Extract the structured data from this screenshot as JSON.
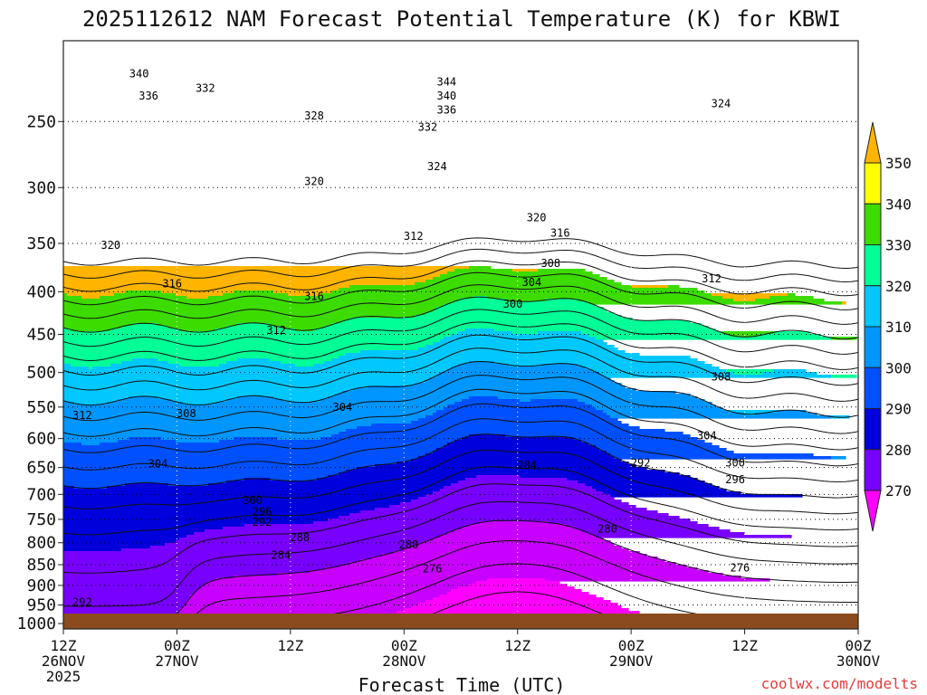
{
  "chart_data": {
    "type": "contour",
    "title": "2025112612 NAM Forecast Potential Temperature (K) for KBWI",
    "xlabel": "Forecast Time (UTC)",
    "ylabel": "",
    "credit": "coolwx.com/modelts",
    "x_ticks": [
      {
        "hour": 0,
        "line1": "12Z",
        "line2": "26NOV",
        "line3": "2025"
      },
      {
        "hour": 12,
        "line1": "00Z",
        "line2": "27NOV",
        "line3": ""
      },
      {
        "hour": 24,
        "line1": "12Z",
        "line2": "",
        "line3": ""
      },
      {
        "hour": 36,
        "line1": "00Z",
        "line2": "28NOV",
        "line3": ""
      },
      {
        "hour": 48,
        "line1": "12Z",
        "line2": "",
        "line3": ""
      },
      {
        "hour": 60,
        "line1": "00Z",
        "line2": "29NOV",
        "line3": ""
      },
      {
        "hour": 72,
        "line1": "12Z",
        "line2": "",
        "line3": ""
      },
      {
        "hour": 84,
        "line1": "00Z",
        "line2": "30NOV",
        "line3": ""
      }
    ],
    "x_range_hours": [
      0,
      84
    ],
    "y_ticks": [
      250,
      300,
      350,
      400,
      450,
      500,
      550,
      600,
      650,
      700,
      750,
      800,
      850,
      900,
      950,
      1000
    ],
    "y_range_hpa": [
      200,
      1015
    ],
    "y_scale": "log-pressure",
    "colorbar": {
      "levels": [
        270,
        280,
        290,
        300,
        310,
        320,
        330,
        340,
        350
      ],
      "labels": [
        "270",
        "280",
        "290",
        "300",
        "310",
        "320",
        "330",
        "340",
        "350"
      ],
      "colors": [
        "#ff00ff",
        "#c800ff",
        "#7800ff",
        "#0000dc",
        "#0050ff",
        "#0096ff",
        "#00c8ff",
        "#00ff96",
        "#3cdc00",
        "#ffff00",
        "#ffb400"
      ]
    },
    "contour_labels": [
      {
        "text": "344",
        "hour": 40.5,
        "p": 224
      },
      {
        "text": "340",
        "hour": 40.5,
        "p": 233
      },
      {
        "text": "336",
        "hour": 40.5,
        "p": 242
      },
      {
        "text": "332",
        "hour": 38.5,
        "p": 254
      },
      {
        "text": "328",
        "hour": 26.5,
        "p": 246
      },
      {
        "text": "340",
        "hour": 8.0,
        "p": 219
      },
      {
        "text": "336",
        "hour": 9.0,
        "p": 233
      },
      {
        "text": "332",
        "hour": 15.0,
        "p": 228
      },
      {
        "text": "324",
        "hour": 69.5,
        "p": 238
      },
      {
        "text": "324",
        "hour": 39.5,
        "p": 283
      },
      {
        "text": "320",
        "hour": 26.5,
        "p": 295
      },
      {
        "text": "320",
        "hour": 50.0,
        "p": 326
      },
      {
        "text": "316",
        "hour": 52.5,
        "p": 340
      },
      {
        "text": "320",
        "hour": 5.0,
        "p": 352
      },
      {
        "text": "312",
        "hour": 37.0,
        "p": 343
      },
      {
        "text": "308",
        "hour": 51.5,
        "p": 370
      },
      {
        "text": "304",
        "hour": 49.5,
        "p": 390
      },
      {
        "text": "300",
        "hour": 47.5,
        "p": 414
      },
      {
        "text": "316",
        "hour": 11.5,
        "p": 391
      },
      {
        "text": "316",
        "hour": 26.5,
        "p": 405
      },
      {
        "text": "312",
        "hour": 68.5,
        "p": 386
      },
      {
        "text": "312",
        "hour": 22.5,
        "p": 445
      },
      {
        "text": "308",
        "hour": 69.5,
        "p": 506
      },
      {
        "text": "304",
        "hour": 29.5,
        "p": 550
      },
      {
        "text": "308",
        "hour": 13.0,
        "p": 560
      },
      {
        "text": "312",
        "hour": 2.0,
        "p": 563
      },
      {
        "text": "304",
        "hour": 68.0,
        "p": 595
      },
      {
        "text": "304",
        "hour": 10.0,
        "p": 643
      },
      {
        "text": "300",
        "hour": 71.0,
        "p": 642
      },
      {
        "text": "296",
        "hour": 71.0,
        "p": 672
      },
      {
        "text": "292",
        "hour": 61.0,
        "p": 642
      },
      {
        "text": "284",
        "hour": 49.0,
        "p": 646
      },
      {
        "text": "300",
        "hour": 20.0,
        "p": 712
      },
      {
        "text": "296",
        "hour": 21.0,
        "p": 734
      },
      {
        "text": "292",
        "hour": 21.0,
        "p": 756
      },
      {
        "text": "280",
        "hour": 57.5,
        "p": 770
      },
      {
        "text": "288",
        "hour": 25.0,
        "p": 789
      },
      {
        "text": "280",
        "hour": 36.5,
        "p": 805
      },
      {
        "text": "284",
        "hour": 23.0,
        "p": 828
      },
      {
        "text": "276",
        "hour": 39.0,
        "p": 860
      },
      {
        "text": "276",
        "hour": 71.5,
        "p": 857
      },
      {
        "text": "292",
        "hour": 2.0,
        "p": 943
      }
    ]
  }
}
